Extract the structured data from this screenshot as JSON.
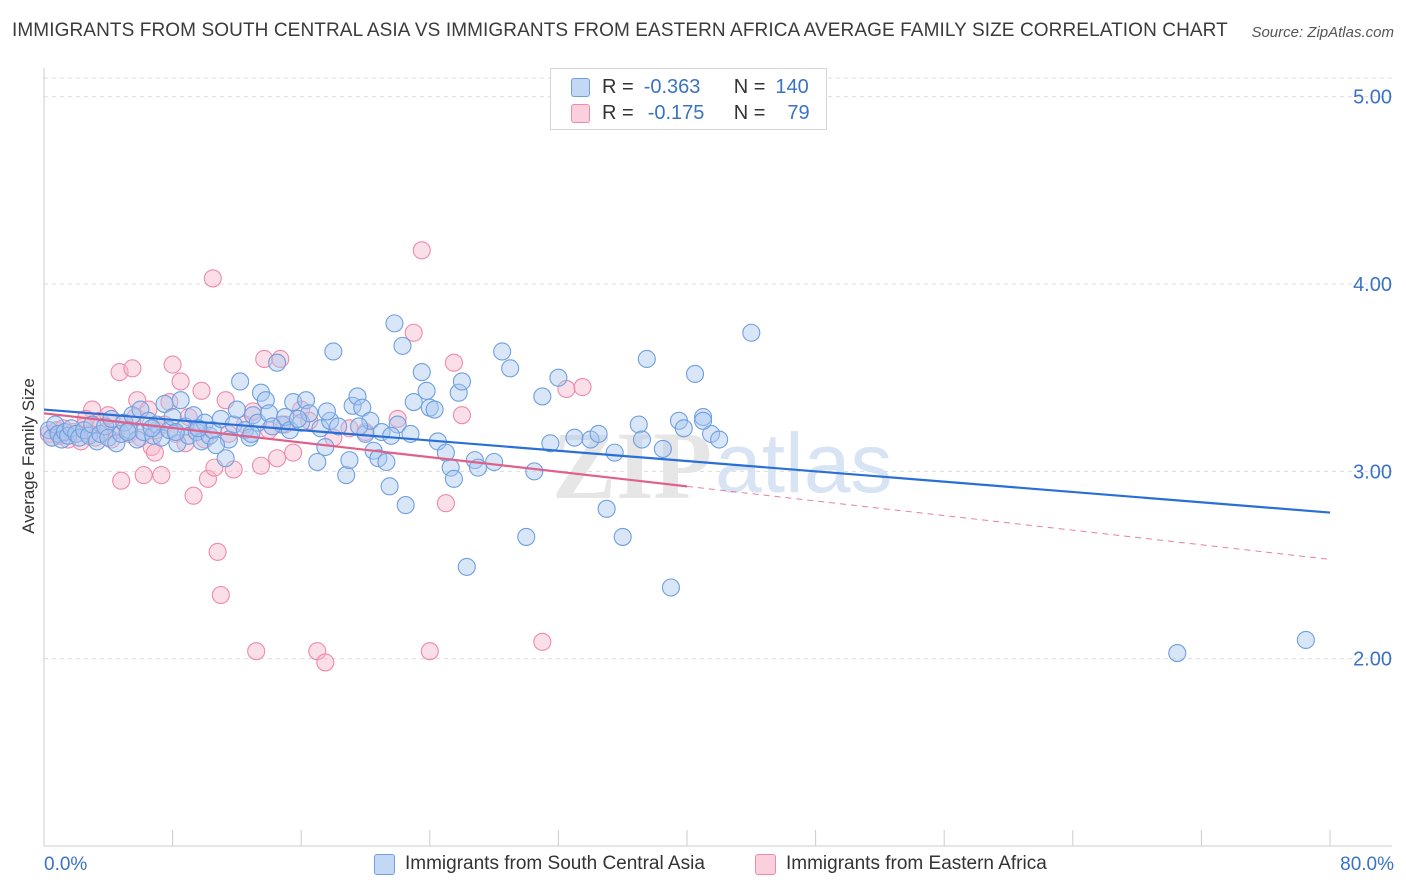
{
  "title": "IMMIGRANTS FROM SOUTH CENTRAL ASIA VS IMMIGRANTS FROM EASTERN AFRICA AVERAGE FAMILY SIZE CORRELATION CHART",
  "source": "Source: ZipAtlas.com",
  "watermark": {
    "zip": "ZIP",
    "atlas": "atlas"
  },
  "legend": {
    "r_label": "R =",
    "n_label": "N =",
    "series1": {
      "r": "-0.363",
      "n": "140"
    },
    "series2": {
      "r": "-0.175",
      "n": "79"
    }
  },
  "colors": {
    "blue_fill": "#a8c8f0",
    "blue_edge": "#6f9fe0",
    "blue_line": "#2a6fd6",
    "pink_fill": "#f7b8cb",
    "pink_edge": "#ee8aa9",
    "pink_line": "#e0608a",
    "axis_text": "#3a73c4",
    "grid": "#dcdcdc"
  },
  "chart_data": {
    "type": "scatter",
    "title": "IMMIGRANTS FROM SOUTH CENTRAL ASIA VS IMMIGRANTS FROM EASTERN AFRICA AVERAGE FAMILY SIZE CORRELATION CHART",
    "xlabel": "",
    "ylabel": "Average Family Size",
    "xlim": [
      0,
      80
    ],
    "ylim": [
      1.0,
      5.1
    ],
    "x_tick_labels": {
      "min": "0.0%",
      "max": "80.0%"
    },
    "y_ticks": [
      2.0,
      3.0,
      4.0,
      5.0
    ],
    "y_tick_labels": [
      "2.00",
      "3.00",
      "4.00",
      "5.00"
    ],
    "grid": true,
    "series": [
      {
        "name": "Immigrants from South Central Asia",
        "color": "blue",
        "R": -0.363,
        "N": 140,
        "trend": {
          "x": [
            0,
            80
          ],
          "y": [
            3.33,
            2.78
          ],
          "dashed_from": null
        },
        "points": [
          [
            0.3,
            3.22
          ],
          [
            0.5,
            3.18
          ],
          [
            0.7,
            3.25
          ],
          [
            0.9,
            3.2
          ],
          [
            1.1,
            3.17
          ],
          [
            1.3,
            3.21
          ],
          [
            1.5,
            3.19
          ],
          [
            1.7,
            3.23
          ],
          [
            2.0,
            3.2
          ],
          [
            2.2,
            3.18
          ],
          [
            2.5,
            3.22
          ],
          [
            2.8,
            3.19
          ],
          [
            3.0,
            3.25
          ],
          [
            3.3,
            3.16
          ],
          [
            3.5,
            3.2
          ],
          [
            3.8,
            3.24
          ],
          [
            4.0,
            3.18
          ],
          [
            4.2,
            3.28
          ],
          [
            4.5,
            3.15
          ],
          [
            4.8,
            3.2
          ],
          [
            5.0,
            3.26
          ],
          [
            5.3,
            3.22
          ],
          [
            5.5,
            3.3
          ],
          [
            5.8,
            3.17
          ],
          [
            6.0,
            3.33
          ],
          [
            6.2,
            3.21
          ],
          [
            6.5,
            3.27
          ],
          [
            6.8,
            3.19
          ],
          [
            7.0,
            3.25
          ],
          [
            7.3,
            3.18
          ],
          [
            7.5,
            3.36
          ],
          [
            7.8,
            3.22
          ],
          [
            8.0,
            3.29
          ],
          [
            8.3,
            3.15
          ],
          [
            8.5,
            3.38
          ],
          [
            8.8,
            3.24
          ],
          [
            9.0,
            3.19
          ],
          [
            9.3,
            3.3
          ],
          [
            9.5,
            3.21
          ],
          [
            9.8,
            3.16
          ],
          [
            10.0,
            3.26
          ],
          [
            10.3,
            3.19
          ],
          [
            10.5,
            3.22
          ],
          [
            11.0,
            3.28
          ],
          [
            11.3,
            3.07
          ],
          [
            11.5,
            3.17
          ],
          [
            11.8,
            3.25
          ],
          [
            12.0,
            3.33
          ],
          [
            12.2,
            3.48
          ],
          [
            12.5,
            3.22
          ],
          [
            12.8,
            3.18
          ],
          [
            13.0,
            3.3
          ],
          [
            13.3,
            3.26
          ],
          [
            13.5,
            3.42
          ],
          [
            13.8,
            3.38
          ],
          [
            14.0,
            3.31
          ],
          [
            14.5,
            3.58
          ],
          [
            14.8,
            3.25
          ],
          [
            15.0,
            3.29
          ],
          [
            15.3,
            3.22
          ],
          [
            15.5,
            3.37
          ],
          [
            16.0,
            3.26
          ],
          [
            16.3,
            3.38
          ],
          [
            16.5,
            3.31
          ],
          [
            17.0,
            3.05
          ],
          [
            17.2,
            3.23
          ],
          [
            17.5,
            3.13
          ],
          [
            17.8,
            3.27
          ],
          [
            18.0,
            3.64
          ],
          [
            18.3,
            3.24
          ],
          [
            18.8,
            2.98
          ],
          [
            19.0,
            3.06
          ],
          [
            19.2,
            3.35
          ],
          [
            19.5,
            3.4
          ],
          [
            19.8,
            3.34
          ],
          [
            20.0,
            3.2
          ],
          [
            20.3,
            3.27
          ],
          [
            20.5,
            3.11
          ],
          [
            20.8,
            3.07
          ],
          [
            21.0,
            3.21
          ],
          [
            21.3,
            3.05
          ],
          [
            21.5,
            2.92
          ],
          [
            21.8,
            3.79
          ],
          [
            22.0,
            3.25
          ],
          [
            22.3,
            3.67
          ],
          [
            22.5,
            2.82
          ],
          [
            22.8,
            3.2
          ],
          [
            23.0,
            3.37
          ],
          [
            23.5,
            3.53
          ],
          [
            23.8,
            3.43
          ],
          [
            24.0,
            3.34
          ],
          [
            24.3,
            3.33
          ],
          [
            24.5,
            3.16
          ],
          [
            25.0,
            3.1
          ],
          [
            25.3,
            3.02
          ],
          [
            25.5,
            2.96
          ],
          [
            25.8,
            3.42
          ],
          [
            26.0,
            3.48
          ],
          [
            26.3,
            2.49
          ],
          [
            26.8,
            3.06
          ],
          [
            27.0,
            3.02
          ],
          [
            28.0,
            3.05
          ],
          [
            28.5,
            3.64
          ],
          [
            30.0,
            2.65
          ],
          [
            30.5,
            3.0
          ],
          [
            31.0,
            3.4
          ],
          [
            31.5,
            3.15
          ],
          [
            32.0,
            3.5
          ],
          [
            33.0,
            3.18
          ],
          [
            34.0,
            3.17
          ],
          [
            34.5,
            3.2
          ],
          [
            35.0,
            2.8
          ],
          [
            35.5,
            3.1
          ],
          [
            36.0,
            2.65
          ],
          [
            37.0,
            3.25
          ],
          [
            37.5,
            3.6
          ],
          [
            38.5,
            3.12
          ],
          [
            39.0,
            2.38
          ],
          [
            39.5,
            3.27
          ],
          [
            39.8,
            3.23
          ],
          [
            40.5,
            3.52
          ],
          [
            41.0,
            3.29
          ],
          [
            41.5,
            3.2
          ],
          [
            42.0,
            3.17
          ],
          [
            41.0,
            3.27
          ],
          [
            37.2,
            3.17
          ],
          [
            29.0,
            3.55
          ],
          [
            44.0,
            3.74
          ],
          [
            70.5,
            2.03
          ],
          [
            78.5,
            2.1
          ],
          [
            5.2,
            3.21
          ],
          [
            6.7,
            3.23
          ],
          [
            8.2,
            3.21
          ],
          [
            9.6,
            3.23
          ],
          [
            10.7,
            3.14
          ],
          [
            12.9,
            3.2
          ],
          [
            14.2,
            3.24
          ],
          [
            15.8,
            3.28
          ],
          [
            17.6,
            3.32
          ],
          [
            19.6,
            3.24
          ],
          [
            21.6,
            3.19
          ]
        ]
      },
      {
        "name": "Immigrants from Eastern Africa",
        "color": "pink",
        "R": -0.175,
        "N": 79,
        "trend": {
          "x": [
            0,
            80
          ],
          "y": [
            3.31,
            2.53
          ],
          "dashed_from": 40
        },
        "points": [
          [
            0.3,
            3.2
          ],
          [
            0.5,
            3.18
          ],
          [
            0.8,
            3.22
          ],
          [
            1.0,
            3.19
          ],
          [
            1.2,
            3.23
          ],
          [
            1.5,
            3.17
          ],
          [
            1.8,
            3.21
          ],
          [
            2.0,
            3.2
          ],
          [
            2.3,
            3.16
          ],
          [
            2.5,
            3.24
          ],
          [
            2.8,
            3.2
          ],
          [
            3.0,
            3.33
          ],
          [
            3.2,
            3.18
          ],
          [
            3.5,
            3.27
          ],
          [
            3.8,
            3.21
          ],
          [
            4.0,
            3.3
          ],
          [
            4.2,
            3.17
          ],
          [
            4.5,
            3.22
          ],
          [
            4.7,
            3.53
          ],
          [
            4.8,
            2.95
          ],
          [
            5.0,
            3.26
          ],
          [
            5.3,
            3.2
          ],
          [
            5.5,
            3.55
          ],
          [
            5.7,
            3.29
          ],
          [
            5.8,
            3.38
          ],
          [
            6.0,
            3.18
          ],
          [
            6.2,
            2.98
          ],
          [
            6.5,
            3.33
          ],
          [
            6.7,
            3.13
          ],
          [
            6.9,
            3.1
          ],
          [
            7.0,
            3.22
          ],
          [
            7.3,
            2.98
          ],
          [
            7.5,
            3.25
          ],
          [
            7.8,
            3.37
          ],
          [
            8.0,
            3.57
          ],
          [
            8.2,
            3.2
          ],
          [
            8.5,
            3.48
          ],
          [
            8.8,
            3.15
          ],
          [
            9.0,
            3.29
          ],
          [
            9.3,
            2.87
          ],
          [
            9.5,
            3.23
          ],
          [
            9.8,
            3.43
          ],
          [
            10.0,
            3.17
          ],
          [
            10.2,
            2.96
          ],
          [
            10.5,
            4.03
          ],
          [
            10.6,
            3.02
          ],
          [
            10.8,
            2.57
          ],
          [
            11.0,
            2.34
          ],
          [
            11.3,
            3.38
          ],
          [
            11.5,
            3.2
          ],
          [
            11.8,
            3.01
          ],
          [
            12.5,
            3.25
          ],
          [
            13.0,
            3.32
          ],
          [
            13.2,
            2.04
          ],
          [
            13.5,
            3.03
          ],
          [
            13.7,
            3.6
          ],
          [
            14.0,
            3.22
          ],
          [
            14.5,
            3.07
          ],
          [
            14.7,
            3.6
          ],
          [
            15.0,
            3.25
          ],
          [
            15.5,
            3.1
          ],
          [
            16.0,
            3.33
          ],
          [
            16.5,
            3.27
          ],
          [
            17.0,
            2.04
          ],
          [
            17.5,
            1.98
          ],
          [
            18.0,
            3.18
          ],
          [
            19.0,
            3.23
          ],
          [
            20.0,
            3.21
          ],
          [
            22.0,
            3.28
          ],
          [
            23.0,
            3.74
          ],
          [
            23.5,
            4.18
          ],
          [
            24.0,
            2.04
          ],
          [
            25.0,
            2.83
          ],
          [
            25.5,
            3.58
          ],
          [
            26.0,
            3.3
          ],
          [
            32.5,
            3.44
          ],
          [
            31.0,
            2.09
          ],
          [
            33.5,
            3.45
          ],
          [
            2.6,
            3.28
          ]
        ]
      }
    ]
  }
}
